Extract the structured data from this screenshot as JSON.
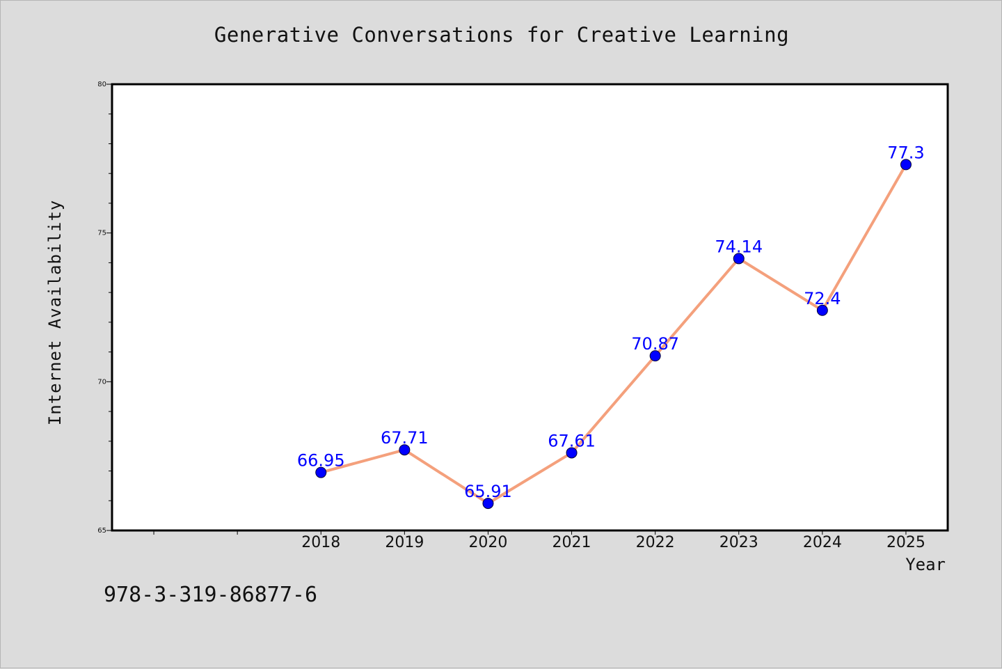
{
  "title": "Generative Conversations for Creative Learning",
  "footer_code": "978-3-319-86877-6",
  "chart_data": {
    "type": "line",
    "title": "Generative Conversations for Creative Learning",
    "xlabel": "Year",
    "ylabel": "Internet Availability",
    "x": [
      "2018",
      "2019",
      "2020",
      "2021",
      "2022",
      "2023",
      "2024",
      "2025"
    ],
    "series": [
      {
        "values": [
          66.95,
          67.71,
          65.91,
          67.61,
          70.87,
          74.14,
          72.4,
          77.3
        ]
      }
    ],
    "data_labels": [
      "66.95",
      "67.71",
      "65.91",
      "67.61",
      "70.87",
      "74.14",
      "72.4",
      "77.3"
    ],
    "ylim": [
      65,
      80
    ],
    "xlim": [
      2015.5,
      2025.5
    ],
    "y_ticks": [
      65,
      70,
      75,
      80
    ],
    "grid": false,
    "colors": {
      "line": "#f4a07c",
      "marker": "#0000ff",
      "label": "#0000ff",
      "plot_bg": "#ffffff",
      "page_bg": "#dcdcdc"
    }
  }
}
